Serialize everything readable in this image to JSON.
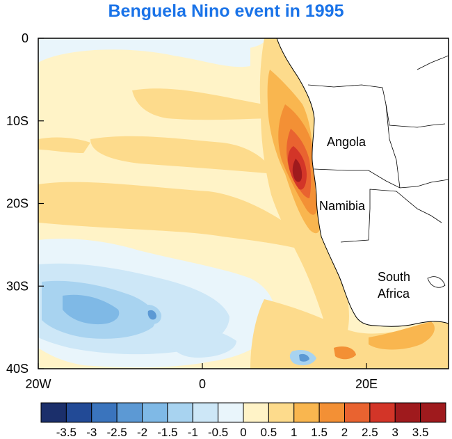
{
  "title": "Benguela Nino event in 1995",
  "map": {
    "x_ticks": [
      {
        "lon": -20,
        "label": "20W"
      },
      {
        "lon": 0,
        "label": "0"
      },
      {
        "lon": 20,
        "label": "20E"
      }
    ],
    "y_ticks": [
      {
        "lat": 0,
        "label": "0"
      },
      {
        "lat": -10,
        "label": "10S"
      },
      {
        "lat": -20,
        "label": "20S"
      },
      {
        "lat": -30,
        "label": "30S"
      },
      {
        "lat": -40,
        "label": "40S"
      }
    ],
    "lon_range": [
      -20,
      30
    ],
    "lat_range": [
      -40,
      0
    ],
    "countries": [
      {
        "name": "Angola"
      },
      {
        "name": "Namibia"
      },
      {
        "name": "South Africa",
        "lines": [
          "South",
          "Africa"
        ]
      }
    ]
  },
  "colorbar": {
    "labels": [
      "-3.5",
      "-3",
      "-2.5",
      "-2",
      "-1.5",
      "-1",
      "-0.5",
      "0",
      "0.5",
      "1",
      "1.5",
      "2",
      "2.5",
      "3",
      "3.5"
    ],
    "colors": [
      "#1b2f6b",
      "#224a96",
      "#3a74bd",
      "#5c99d4",
      "#7fb9e6",
      "#a8d3f0",
      "#cde7f7",
      "#e9f5fb",
      "#fff3c7",
      "#fddb8c",
      "#f9b64f",
      "#f39035",
      "#e96330",
      "#d33528",
      "#9f1a1d",
      "#9f1a1d"
    ]
  }
}
